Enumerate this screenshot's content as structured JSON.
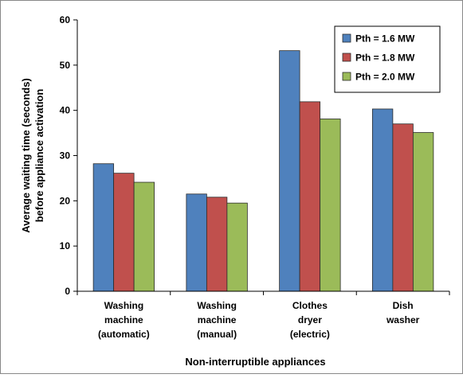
{
  "chart_data": {
    "type": "bar",
    "title": "",
    "xlabel": "Non-interruptible appliances",
    "ylabel_lines": [
      "Average waiting time (seconds)",
      "before appliance activation"
    ],
    "ylim": [
      0,
      60
    ],
    "yticks": [
      0,
      10,
      20,
      30,
      40,
      50,
      60
    ],
    "grid": false,
    "legend_position": "top-right",
    "categories": [
      [
        "Washing",
        "machine",
        "(automatic)"
      ],
      [
        "Washing",
        "machine",
        "(manual)"
      ],
      [
        "Clothes",
        "dryer",
        "(electric)"
      ],
      [
        "Dish",
        "washer"
      ]
    ],
    "series": [
      {
        "name": "Pth = 1.6 MW",
        "color": "#4f81bd",
        "values": [
          28.2,
          21.5,
          53.2,
          40.3
        ]
      },
      {
        "name": "Pth = 1.8 MW",
        "color": "#c0504d",
        "values": [
          26.1,
          20.8,
          41.9,
          37.0
        ]
      },
      {
        "name": "Pth = 2.0 MW",
        "color": "#9bbb59",
        "values": [
          24.1,
          19.5,
          38.1,
          35.1
        ]
      }
    ]
  }
}
